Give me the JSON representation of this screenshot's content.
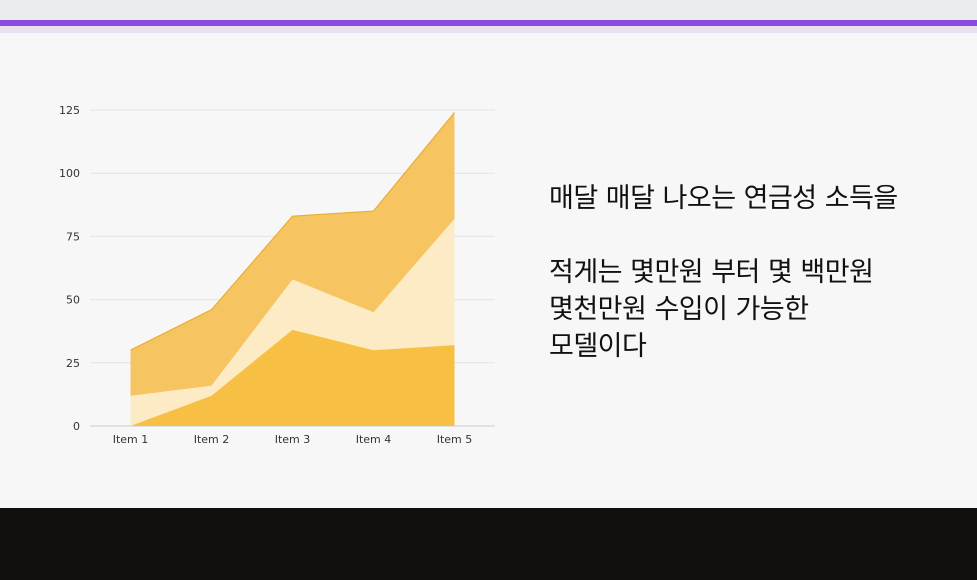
{
  "slide": {
    "headline": "매달 매달 나오는 연금성 소득을",
    "body_lines": [
      "적게는 몇만원 부터 몇 백만원",
      "몇천만원 수입이 가능한",
      "모델이다"
    ]
  },
  "colors": {
    "accent": "#8a4be0",
    "footer": "#130f0c",
    "series_bottom": "#f7c045",
    "series_middle": "#fdebc5",
    "series_top": "#f6c25a",
    "series_top_line": "#e8ae35"
  },
  "chart_data": {
    "type": "area",
    "stacked": true,
    "categories": [
      "Item 1",
      "Item 2",
      "Item 3",
      "Item 4",
      "Item 5"
    ],
    "series": [
      {
        "values": [
          0,
          12,
          38,
          30,
          32
        ]
      },
      {
        "values": [
          12,
          4,
          20,
          15,
          50
        ]
      },
      {
        "values": [
          18,
          30,
          25,
          40,
          42
        ]
      }
    ],
    "ylim": [
      0,
      125
    ],
    "yticks": [
      0,
      25,
      50,
      75,
      100,
      125
    ],
    "grid": true,
    "legend": "none",
    "title": "",
    "xlabel": "",
    "ylabel": ""
  }
}
